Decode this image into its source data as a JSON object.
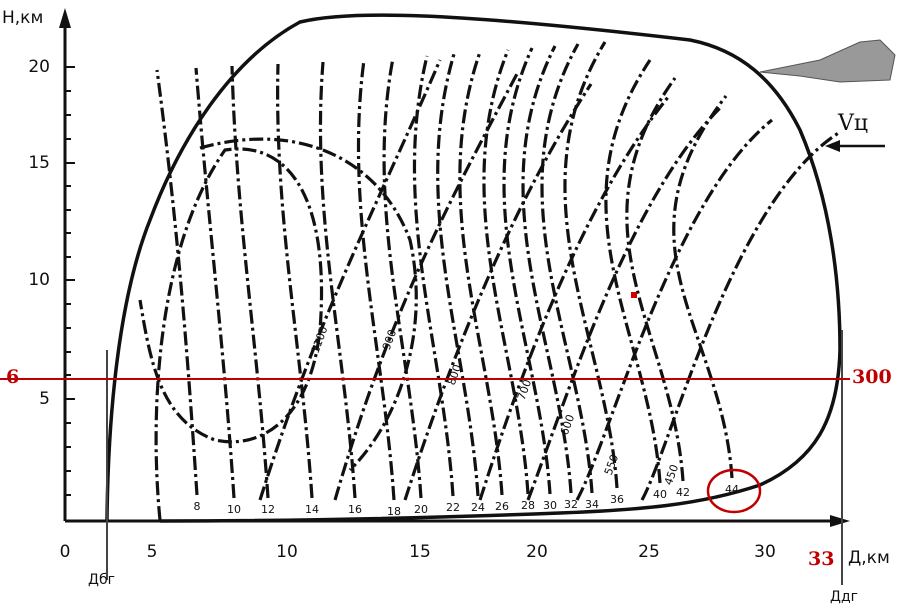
{
  "axes": {
    "y_label": "H,км",
    "x_label": "Д,км",
    "x_ticks": [
      "0",
      "5",
      "10",
      "15",
      "20",
      "25",
      "30"
    ],
    "y_ticks": [
      "5",
      "10",
      "15",
      "20"
    ]
  },
  "markers": {
    "left": "Дбг",
    "right": "Ддг"
  },
  "annotations": {
    "height": "6",
    "speed": "300",
    "range": "33",
    "velocity": "Vц"
  },
  "range_labels": [
    "8",
    "10",
    "12",
    "14",
    "16",
    "18",
    "20",
    "22",
    "24",
    "26",
    "28",
    "30",
    "32",
    "34",
    "36",
    "40",
    "42",
    "44"
  ],
  "speed_labels": [
    "1100",
    "900",
    "800",
    "700",
    "600",
    "550",
    "450"
  ]
}
